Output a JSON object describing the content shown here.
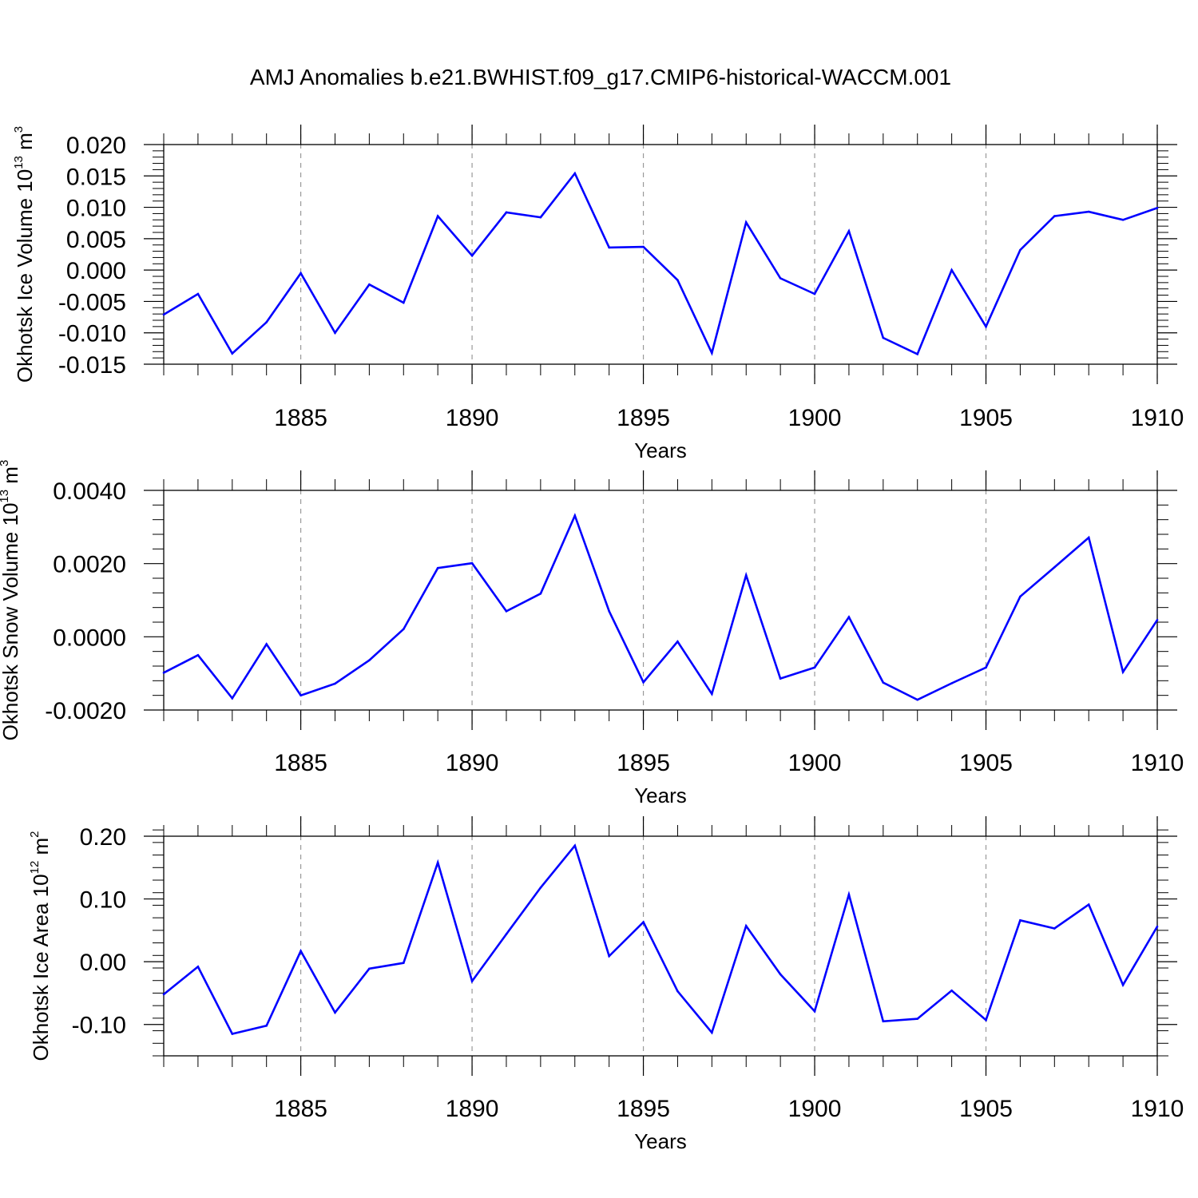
{
  "title": "AMJ Anomalies b.e21.BWHIST.f09_g17.CMIP6-historical-WACCM.001",
  "line_color": "#0000ff",
  "chart_data": [
    {
      "type": "line",
      "xlabel": "Years",
      "ylabel_main": "Okhotsk Ice Volume 10",
      "ylabel_exp": "13",
      "ylabel_unit": "m",
      "ylabel_unit_exp": "3",
      "xlim": [
        1881,
        1910
      ],
      "ylim": [
        -0.015,
        0.02
      ],
      "xticks": [
        1885,
        1890,
        1895,
        1900,
        1905,
        1910
      ],
      "xtick_labels": [
        "1885",
        "1890",
        "1895",
        "1900",
        "1905",
        "1910"
      ],
      "yticks": [
        -0.015,
        -0.01,
        -0.005,
        0.0,
        0.005,
        0.01,
        0.015,
        0.02
      ],
      "ytick_labels": [
        "-0.015",
        "-0.010",
        "-0.005",
        "0.000",
        "0.005",
        "0.010",
        "0.015",
        "0.020"
      ],
      "yminor_step": 0.001,
      "x": [
        1881,
        1882,
        1883,
        1884,
        1885,
        1886,
        1887,
        1888,
        1889,
        1890,
        1891,
        1892,
        1893,
        1894,
        1895,
        1896,
        1897,
        1898,
        1899,
        1900,
        1901,
        1902,
        1903,
        1904,
        1905,
        1906,
        1907,
        1908,
        1909,
        1910
      ],
      "values": [
        -0.0071,
        -0.0038,
        -0.0133,
        -0.0083,
        -0.0005,
        -0.01,
        -0.0023,
        -0.0052,
        0.0086,
        0.0023,
        0.0092,
        0.0084,
        0.0154,
        0.0036,
        0.0037,
        -0.0016,
        -0.0132,
        0.0076,
        -0.0013,
        -0.0038,
        0.0062,
        -0.0108,
        -0.0134,
        0.0,
        -0.009,
        0.0032,
        0.0086,
        0.0093,
        0.008,
        0.0099
      ]
    },
    {
      "type": "line",
      "xlabel": "Years",
      "ylabel_main": "Okhotsk Snow Volume 10",
      "ylabel_exp": "13",
      "ylabel_unit": "m",
      "ylabel_unit_exp": "3",
      "xlim": [
        1881,
        1910
      ],
      "ylim": [
        -0.002,
        0.004
      ],
      "xticks": [
        1885,
        1890,
        1895,
        1900,
        1905,
        1910
      ],
      "xtick_labels": [
        "1885",
        "1890",
        "1895",
        "1900",
        "1905",
        "1910"
      ],
      "yticks": [
        -0.002,
        0.0,
        0.002,
        0.004
      ],
      "ytick_labels": [
        "-0.0020",
        "0.0000",
        "0.0020",
        "0.0040"
      ],
      "yminor_step": 0.0004,
      "x": [
        1881,
        1882,
        1883,
        1884,
        1885,
        1886,
        1887,
        1888,
        1889,
        1890,
        1891,
        1892,
        1893,
        1894,
        1895,
        1896,
        1897,
        1898,
        1899,
        1900,
        1901,
        1902,
        1903,
        1904,
        1905,
        1906,
        1907,
        1908,
        1909,
        1910
      ],
      "values": [
        -0.00098,
        -0.0005,
        -0.00168,
        -0.0002,
        -0.0016,
        -0.00128,
        -0.00064,
        0.00021,
        0.00188,
        0.00201,
        0.0007,
        0.00118,
        0.00331,
        0.0007,
        -0.00124,
        -0.00013,
        -0.00156,
        0.00168,
        -0.00114,
        -0.00084,
        0.00054,
        -0.00125,
        -0.00172,
        -0.00127,
        -0.00084,
        0.0011,
        0.0019,
        0.00271,
        -0.00096,
        0.00046
      ]
    },
    {
      "type": "line",
      "xlabel": "Years",
      "ylabel_main": "Okhotsk Ice Area 10",
      "ylabel_exp": "12",
      "ylabel_unit": "m",
      "ylabel_unit_exp": "2",
      "xlim": [
        1881,
        1910
      ],
      "ylim": [
        -0.15,
        0.2
      ],
      "xticks": [
        1885,
        1890,
        1895,
        1900,
        1905,
        1910
      ],
      "xtick_labels": [
        "1885",
        "1890",
        "1895",
        "1900",
        "1905",
        "1910"
      ],
      "yticks": [
        -0.1,
        0.0,
        0.1,
        0.2
      ],
      "ytick_labels": [
        "-0.10",
        "0.00",
        "0.10",
        "0.20"
      ],
      "yminor_step": 0.02,
      "x": [
        1881,
        1882,
        1883,
        1884,
        1885,
        1886,
        1887,
        1888,
        1889,
        1890,
        1891,
        1892,
        1893,
        1894,
        1895,
        1896,
        1897,
        1898,
        1899,
        1900,
        1901,
        1902,
        1903,
        1904,
        1905,
        1906,
        1907,
        1908,
        1909,
        1910
      ],
      "values": [
        -0.052,
        -0.008,
        -0.115,
        -0.102,
        0.017,
        -0.081,
        -0.011,
        -0.002,
        0.158,
        -0.031,
        0.044,
        0.118,
        0.185,
        0.009,
        0.063,
        -0.047,
        -0.113,
        0.057,
        -0.02,
        -0.079,
        0.107,
        -0.095,
        -0.091,
        -0.046,
        -0.093,
        0.066,
        0.053,
        0.091,
        -0.037,
        0.056
      ]
    }
  ]
}
